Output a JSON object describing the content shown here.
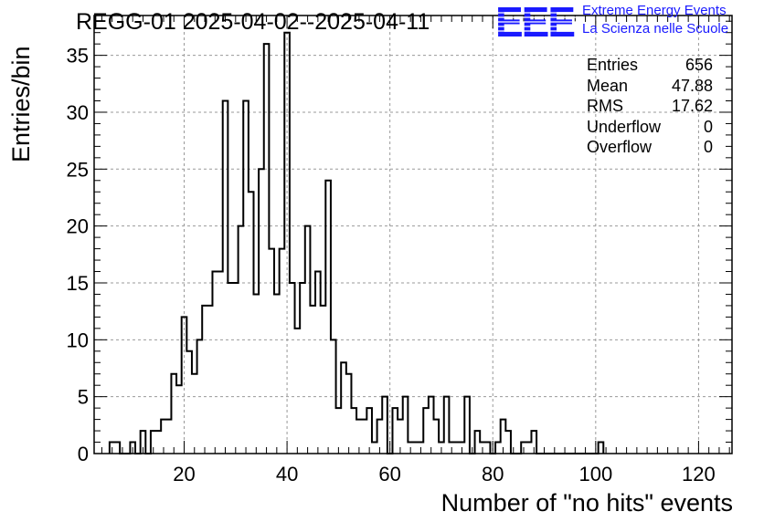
{
  "header": {
    "title": "REGG-01 2025-04-02--2025-04-11",
    "logo_mark": "EEE",
    "logo_line1": "Extreme Energy Events",
    "logo_line2": "La Scienza nelle Scuole",
    "logo_color": "#1a1aff"
  },
  "stats": {
    "entries_label": "Entries",
    "entries_value": "656",
    "mean_label": "Mean",
    "mean_value": "47.88",
    "rms_label": "RMS",
    "rms_value": "17.62",
    "underflow_label": "Underflow",
    "underflow_value": "0",
    "overflow_label": "Overflow",
    "overflow_value": "0"
  },
  "chart_data": {
    "type": "histogram",
    "xlabel": "Number of \"no hits\" events",
    "ylabel": "Entries/bin",
    "xlim": [
      2.5,
      126.5
    ],
    "ylim": [
      0,
      38.5
    ],
    "bin_width": 1,
    "bin_start": 5.5,
    "values": [
      1,
      1,
      0,
      0,
      1,
      0,
      2,
      0,
      2,
      2,
      3,
      3,
      7,
      6,
      12,
      9,
      7,
      10,
      13,
      13,
      16,
      16,
      31,
      15,
      15,
      20,
      31,
      23,
      14,
      25,
      36,
      18,
      14,
      18,
      37,
      15,
      11,
      15,
      20,
      13,
      16,
      13,
      24,
      10,
      4,
      8,
      7,
      4,
      3,
      3,
      4,
      1,
      3,
      5,
      0,
      4,
      3,
      5,
      1,
      1,
      1,
      4,
      5,
      3,
      1,
      5,
      1,
      1,
      1,
      5,
      0,
      2,
      1,
      1,
      0,
      1,
      3,
      2,
      0,
      0,
      1,
      1,
      2,
      0,
      0,
      0,
      0,
      0,
      0,
      0,
      0,
      0,
      0,
      0,
      0,
      1
    ],
    "xticks": [
      20,
      40,
      60,
      80,
      100,
      120
    ],
    "yticks": [
      0,
      5,
      10,
      15,
      20,
      25,
      30,
      35
    ],
    "line_color": "#000000",
    "grid": true,
    "stats_box_position": "top-right"
  }
}
